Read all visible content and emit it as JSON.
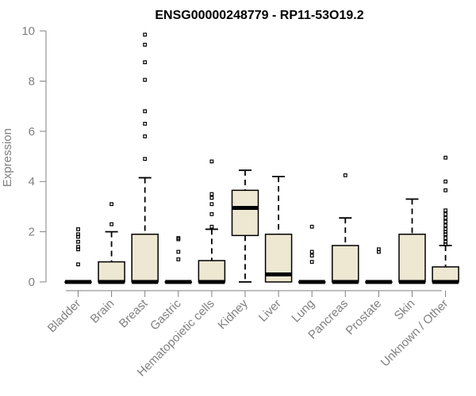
{
  "chart_data": {
    "type": "boxplot",
    "title": "ENSG00000248779 - RP11-53O19.2",
    "ylabel": "Expression",
    "xlabel": "",
    "ylim": [
      0,
      10
    ],
    "yticks": [
      0,
      2,
      4,
      6,
      8,
      10
    ],
    "grid": false,
    "box_fill": "#EEE8D2",
    "categories": [
      "Bladder",
      "Brain",
      "Breast",
      "Gastric",
      "Hematopoietic cells",
      "Kidney",
      "Liver",
      "Lung",
      "Pancreas",
      "Prostate",
      "Skin",
      "Unknown / Other"
    ],
    "boxes": [
      {
        "category": "Bladder",
        "lower_whisker": 0,
        "q1": 0,
        "median": 0,
        "q3": 0,
        "upper_whisker": 0,
        "outliers": [
          0.7,
          1.3,
          1.4,
          1.6,
          1.8,
          1.9,
          2.1
        ]
      },
      {
        "category": "Brain",
        "lower_whisker": 0,
        "q1": 0,
        "median": 0,
        "q3": 0.8,
        "upper_whisker": 2.0,
        "outliers": [
          2.3,
          3.1
        ]
      },
      {
        "category": "Breast",
        "lower_whisker": 0,
        "q1": 0,
        "median": 0,
        "q3": 1.9,
        "upper_whisker": 4.15,
        "outliers": [
          4.9,
          5.8,
          6.3,
          6.8,
          8.05,
          8.75,
          9.45,
          9.85
        ]
      },
      {
        "category": "Gastric",
        "lower_whisker": 0,
        "q1": 0,
        "median": 0,
        "q3": 0,
        "upper_whisker": 0,
        "outliers": [
          0.9,
          1.2,
          1.7,
          1.75
        ]
      },
      {
        "category": "Hematopoietic cells",
        "lower_whisker": 0,
        "q1": 0,
        "median": 0,
        "q3": 0.85,
        "upper_whisker": 2.1,
        "outliers": [
          2.2,
          2.7,
          3.1,
          3.35,
          3.5,
          4.8
        ]
      },
      {
        "category": "Kidney",
        "lower_whisker": 0,
        "q1": 1.85,
        "median": 2.95,
        "q3": 3.65,
        "upper_whisker": 4.45,
        "outliers": []
      },
      {
        "category": "Liver",
        "lower_whisker": 0,
        "q1": 0,
        "median": 0.3,
        "q3": 1.9,
        "upper_whisker": 4.2,
        "outliers": []
      },
      {
        "category": "Lung",
        "lower_whisker": 0,
        "q1": 0,
        "median": 0,
        "q3": 0,
        "upper_whisker": 0,
        "outliers": [
          0.8,
          1.05,
          1.2,
          2.2
        ]
      },
      {
        "category": "Pancreas",
        "lower_whisker": 0,
        "q1": 0,
        "median": 0,
        "q3": 1.45,
        "upper_whisker": 2.55,
        "outliers": [
          4.25
        ]
      },
      {
        "category": "Prostate",
        "lower_whisker": 0,
        "q1": 0,
        "median": 0,
        "q3": 0,
        "upper_whisker": 0,
        "outliers": [
          1.2,
          1.3
        ]
      },
      {
        "category": "Skin",
        "lower_whisker": 0,
        "q1": 0,
        "median": 0,
        "q3": 1.9,
        "upper_whisker": 3.3,
        "outliers": []
      },
      {
        "category": "Unknown / Other",
        "lower_whisker": 0,
        "q1": 0,
        "median": 0,
        "q3": 0.6,
        "upper_whisker": 1.45,
        "outliers": [
          1.5,
          1.6,
          1.75,
          1.9,
          2.0,
          2.1,
          2.25,
          2.4,
          2.55,
          2.7,
          2.85,
          3.65,
          4.0,
          4.95
        ]
      }
    ]
  }
}
